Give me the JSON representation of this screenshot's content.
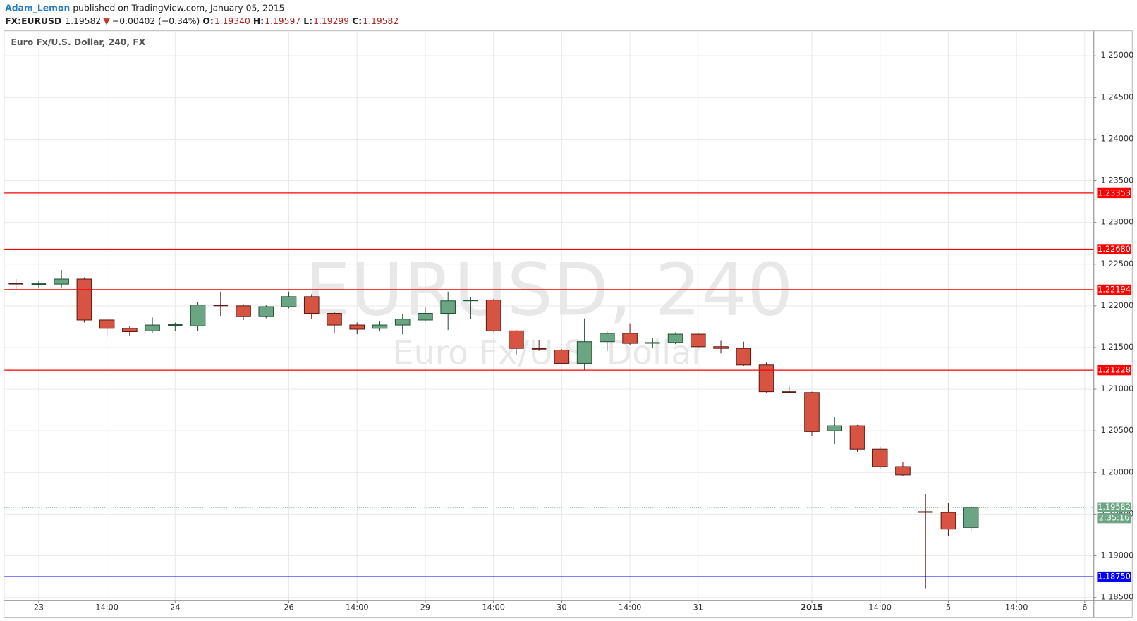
{
  "chart_data": {
    "type": "candlestick",
    "header": {
      "author": "Adam_Lemon",
      "published": "published on TradingView.com, January 05, 2015",
      "symbol": "FX:EURUSD",
      "last": "1.19582",
      "arrow": "▼",
      "change": "−0.00402 (−0.34%)",
      "o_label": "O:",
      "o": "1.19340",
      "h_label": "H:",
      "h": "1.19597",
      "l_label": "L:",
      "l": "1.19299",
      "c_label": "C:",
      "c": "1.19582"
    },
    "legend": "Euro Fx/U.S. Dollar, 240, FX",
    "watermark": "EURUSD, 240",
    "watermark_subtitle": "Euro Fx/U.S. Dollar",
    "categories": [
      null,
      "23",
      null,
      null,
      "14:00",
      null,
      null,
      "24",
      null,
      null,
      null,
      null,
      "26",
      null,
      null,
      "14:00",
      null,
      null,
      "29",
      null,
      null,
      "14:00",
      null,
      null,
      "30",
      null,
      null,
      "14:00",
      null,
      null,
      "31",
      null,
      null,
      null,
      null,
      "2015",
      null,
      null,
      "14:00",
      null,
      null,
      "5",
      null,
      null,
      "14:00",
      null,
      null,
      "6"
    ],
    "open": [
      1.2227,
      1.2226,
      1.2226,
      1.2232,
      1.2183,
      1.2173,
      1.217,
      1.2177,
      1.2176,
      1.2201,
      1.22,
      1.2187,
      1.2199,
      1.2211,
      1.2191,
      1.2177,
      1.2173,
      1.2177,
      1.2183,
      1.2191,
      1.2206,
      1.2207,
      1.217,
      1.2149,
      1.2147,
      1.2131,
      1.2157,
      1.2167,
      1.2155,
      1.2156,
      1.2166,
      1.2151,
      1.2149,
      1.2129,
      1.2097,
      1.2096,
      1.205,
      1.2056,
      1.2028,
      1.2007,
      1.1953,
      1.1952,
      1.1934,
      null,
      null,
      null,
      null,
      null
    ],
    "high": [
      1.2232,
      1.223,
      1.2243,
      1.2234,
      1.2185,
      1.2176,
      1.2186,
      1.218,
      1.2205,
      1.2217,
      1.2202,
      1.2201,
      1.2217,
      1.2214,
      1.2193,
      1.218,
      1.2182,
      1.219,
      1.2198,
      1.2217,
      1.221,
      1.2208,
      1.2171,
      1.2159,
      1.2148,
      1.2185,
      1.2169,
      1.2179,
      1.2161,
      1.2168,
      1.2168,
      1.2158,
      1.2157,
      1.2132,
      1.2104,
      1.2097,
      1.2067,
      1.2057,
      1.2031,
      1.2013,
      1.1974,
      1.1963,
      1.19597,
      null,
      null,
      null,
      null,
      null
    ],
    "low": [
      1.222,
      1.2222,
      1.2222,
      1.218,
      1.2163,
      1.2164,
      1.2168,
      1.217,
      1.217,
      1.2188,
      1.2183,
      1.2185,
      1.2197,
      1.2184,
      1.2167,
      1.2166,
      1.217,
      1.2166,
      1.2181,
      1.2171,
      1.2184,
      1.2169,
      1.2141,
      1.2146,
      1.213,
      1.2123,
      1.2146,
      1.2153,
      1.215,
      1.2154,
      1.215,
      1.2143,
      1.2128,
      1.2096,
      1.2095,
      1.2044,
      1.2034,
      1.2025,
      1.2004,
      1.1996,
      1.1861,
      1.1924,
      1.19299,
      null,
      null,
      null,
      null,
      null
    ],
    "close": [
      1.2226,
      1.2226,
      1.2232,
      1.2183,
      1.2173,
      1.2169,
      1.2177,
      1.2177,
      1.2201,
      1.22,
      1.2187,
      1.2199,
      1.2211,
      1.2191,
      1.2177,
      1.2172,
      1.2177,
      1.2184,
      1.2191,
      1.2206,
      1.2207,
      1.217,
      1.2149,
      1.2148,
      1.2131,
      1.2157,
      1.2167,
      1.2155,
      1.2156,
      1.2166,
      1.2151,
      1.2149,
      1.2129,
      1.2097,
      1.2096,
      1.2049,
      1.2056,
      1.2028,
      1.2007,
      1.1997,
      1.1952,
      1.1932,
      1.19582,
      null,
      null,
      null,
      null,
      null
    ],
    "up_color": "#6ba583",
    "down_color": "#d75442",
    "ylim": [
      1.1847,
      1.25296
    ],
    "yticks": [
      {
        "value": 1.25,
        "label": "1.25000"
      },
      {
        "value": 1.245,
        "label": "1.24500"
      },
      {
        "value": 1.24,
        "label": "1.24000"
      },
      {
        "value": 1.235,
        "label": "1.23500"
      },
      {
        "value": 1.23,
        "label": "1.23000"
      },
      {
        "value": 1.225,
        "label": "1.22500"
      },
      {
        "value": 1.22,
        "label": "1.22000"
      },
      {
        "value": 1.215,
        "label": "1.21500"
      },
      {
        "value": 1.21,
        "label": "1.21000"
      },
      {
        "value": 1.205,
        "label": "1.20500"
      },
      {
        "value": 1.2,
        "label": "1.20000"
      },
      {
        "value": 1.195,
        "label": "1.19500"
      },
      {
        "value": 1.19,
        "label": "1.19000"
      },
      {
        "value": 1.185,
        "label": "1.18500"
      }
    ],
    "grid": true,
    "levels": [
      {
        "value": 1.23353,
        "color": "#ff0000"
      },
      {
        "value": 1.2268,
        "label": "1.22680",
        "color": "#ff0000"
      },
      {
        "value": 1.22194,
        "color": "#ff0000"
      },
      {
        "value": 1.21228,
        "color": "#ff0000"
      },
      {
        "value": 1.1875,
        "label": "1.18750",
        "color": "#0000ff"
      }
    ],
    "countdown": "2:35:16"
  }
}
